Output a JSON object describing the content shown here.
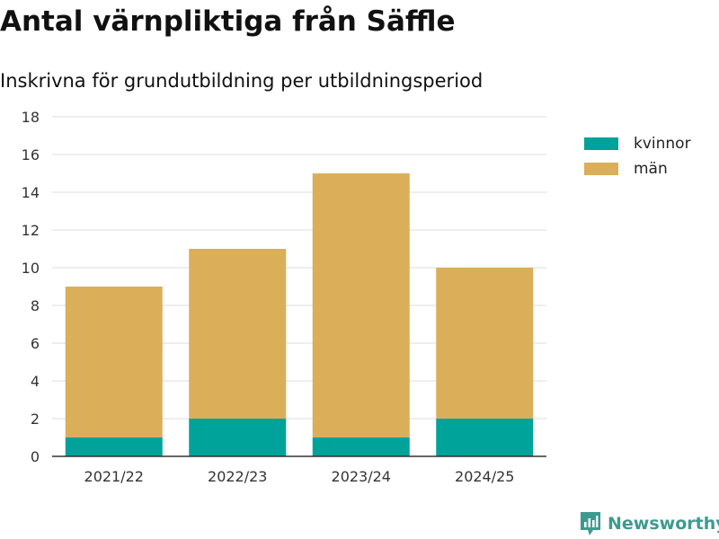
{
  "header": {
    "title": "Antal värnpliktiga från Säffle",
    "subtitle": "Inskrivna för grundutbildning per utbildningsperiod"
  },
  "brand": {
    "name": "Newsworthy",
    "icon": "newsworthy-logo-icon",
    "color": "#3d9a8f"
  },
  "chart_data": {
    "type": "bar",
    "stacked": true,
    "categories": [
      "2021/22",
      "2022/23",
      "2023/24",
      "2024/25"
    ],
    "series": [
      {
        "name": "kvinnor",
        "color": "#00a39a",
        "values": [
          1,
          2,
          1,
          2
        ]
      },
      {
        "name": "män",
        "color": "#dbae5a",
        "values": [
          8,
          9,
          14,
          8
        ]
      }
    ],
    "ylim": [
      0,
      18
    ],
    "yticks": [
      0,
      2,
      4,
      6,
      8,
      10,
      12,
      14,
      16,
      18
    ],
    "grid": true,
    "legend": "top-right"
  }
}
